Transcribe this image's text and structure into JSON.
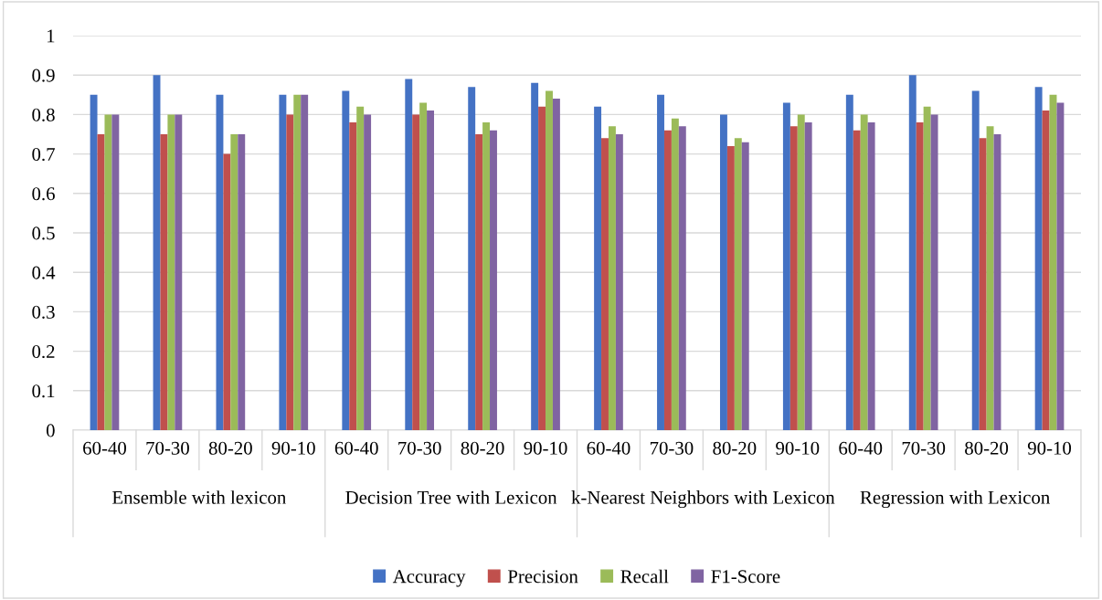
{
  "chart_data": {
    "type": "bar",
    "categories": [
      "60-40",
      "70-30",
      "80-20",
      "90-10",
      "60-40",
      "70-30",
      "80-20",
      "90-10",
      "60-40",
      "70-30",
      "80-20",
      "90-10",
      "60-40",
      "70-30",
      "80-20",
      "90-10"
    ],
    "annotations": [
      "Ensemble with lexicon",
      "Decision Tree with Lexicon",
      "k-Nearest Neighbors with Lexicon",
      "Regression with Lexicon"
    ],
    "series": [
      {
        "name": "Accuracy",
        "color": "#4472c4",
        "values": [
          0.85,
          0.9,
          0.85,
          0.85,
          0.86,
          0.89,
          0.87,
          0.88,
          0.82,
          0.85,
          0.8,
          0.83,
          0.85,
          0.9,
          0.86,
          0.87
        ]
      },
      {
        "name": "Precision",
        "color": "#c0504d",
        "values": [
          0.75,
          0.75,
          0.7,
          0.8,
          0.78,
          0.8,
          0.75,
          0.82,
          0.74,
          0.76,
          0.72,
          0.77,
          0.76,
          0.78,
          0.74,
          0.81
        ]
      },
      {
        "name": "Recall",
        "color": "#9bbb59",
        "values": [
          0.8,
          0.8,
          0.75,
          0.85,
          0.82,
          0.83,
          0.78,
          0.86,
          0.77,
          0.79,
          0.74,
          0.8,
          0.8,
          0.82,
          0.77,
          0.85
        ]
      },
      {
        "name": "F1-Score",
        "color": "#8064a2",
        "values": [
          0.8,
          0.8,
          0.75,
          0.85,
          0.8,
          0.81,
          0.76,
          0.84,
          0.75,
          0.77,
          0.73,
          0.78,
          0.78,
          0.8,
          0.75,
          0.83
        ]
      }
    ],
    "ylim": [
      0,
      1
    ],
    "yticks": [
      0,
      0.1,
      0.2,
      0.3,
      0.4,
      0.5,
      0.6,
      0.7,
      0.8,
      0.9,
      1
    ],
    "grid": "y",
    "legend": "bottom"
  }
}
